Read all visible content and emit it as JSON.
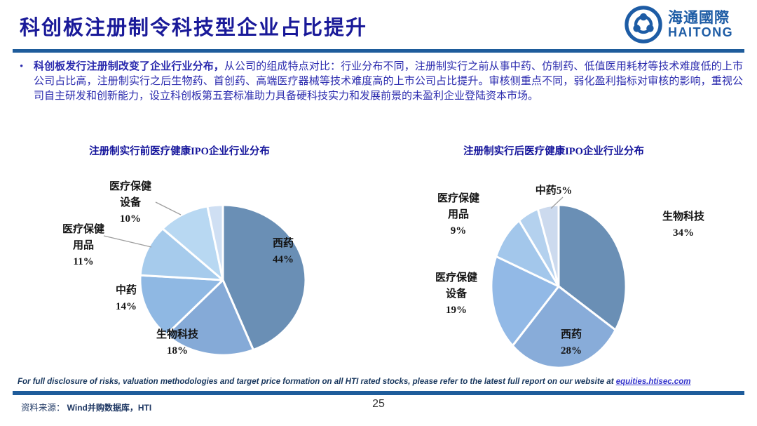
{
  "slide": {
    "title": "科创板注册制令科技型企业占比提升",
    "page_number": "25"
  },
  "logo": {
    "cn": "海通國際",
    "en": "HAITONG"
  },
  "bullet": {
    "marker": "•",
    "lead_bold": "科创板发行注册制改变了企业行业分布，",
    "body": "从公司的组成特点对比：行业分布不同，注册制实行之前从事中药、仿制药、低值医用耗材等技术难度低的上市公司占比高，注册制实行之后生物药、首创药、高端医疗器械等技术难度高的上市公司占比提升。审核侧重点不同，弱化盈利指标对审核的影响，重视公司自主研发和创新能力，设立科创板第五套标准助力具备硬科技实力和发展前景的未盈利企业登陆资本市场。"
  },
  "chart_data": [
    {
      "type": "pie",
      "title": "注册制实行前医疗健康IPO企业行业分布",
      "unit": "%",
      "legend": "none",
      "label_style": "outside",
      "slices": [
        {
          "label": "西药",
          "value": 44,
          "color": "#6a8fb5"
        },
        {
          "label": "生物科技",
          "value": 18,
          "color": "#85aad7"
        },
        {
          "label": "中药",
          "value": 14,
          "color": "#8fb8e3"
        },
        {
          "label": "医疗保健用品",
          "value": 11,
          "color": "#a6cbec"
        },
        {
          "label": "医疗保健设备",
          "value": 10,
          "color": "#b8d8f2"
        },
        {
          "label": "",
          "value": 3,
          "color": "#cfdff3"
        }
      ]
    },
    {
      "type": "pie",
      "title": "注册制实行后医疗健康IPO企业行业分布",
      "unit": "%",
      "legend": "none",
      "label_style": "outside",
      "slices": [
        {
          "label": "生物科技",
          "value": 34,
          "color": "#6a8fb5"
        },
        {
          "label": "西药",
          "value": 28,
          "color": "#88acd9"
        },
        {
          "label": "医疗保健设备",
          "value": 19,
          "color": "#92b9e6"
        },
        {
          "label": "医疗保健用品",
          "value": 9,
          "color": "#a3c7eb"
        },
        {
          "label": "",
          "value": 5,
          "color": "#b4d1ee"
        },
        {
          "label": "中药",
          "value": 5,
          "color": "#ccdaee"
        }
      ]
    }
  ],
  "footer": {
    "disclaimer_text": "For full disclosure of risks, valuation methodologies and target price formation on all HTI rated stocks, please refer to the latest full report on our website at ",
    "disclaimer_link": "equities.htisec.com",
    "source_label": "资料来源：",
    "source_value": "Wind并购数据库，HTI"
  },
  "colors": {
    "accent_blue": "#1e5c9b",
    "title_navy": "#1a1a99",
    "body_blue": "#2a2aae",
    "label_black": "#141414",
    "logo_blue": "#1d5ca5",
    "link_blue": "#3333cc",
    "leader_gray": "#9e9e9e"
  }
}
